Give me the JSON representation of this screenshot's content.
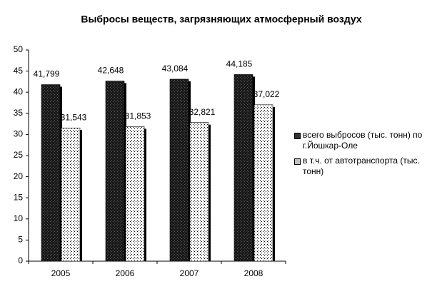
{
  "chart_data": {
    "type": "bar",
    "title": "Выбросы веществ, загрязняющих атмосферный воздух",
    "categories": [
      "2005",
      "2006",
      "2007",
      "2008"
    ],
    "series": [
      {
        "name": "всего выбросов (тыс. тонн) по г.Йошкар-Оле",
        "color": "#1a1a1a",
        "values": [
          41.799,
          42.648,
          43.084,
          44.185
        ],
        "value_labels": [
          "41,799",
          "42,648",
          "43,084",
          "44,185"
        ]
      },
      {
        "name": "в т.ч. от автотранспорта (тыс. тонн)",
        "color": "#ffffff",
        "values": [
          31.543,
          31.853,
          32.821,
          37.022
        ],
        "value_labels": [
          "31,543",
          "31,853",
          "32,821",
          "37,022"
        ]
      }
    ],
    "ylim": [
      0,
      50
    ],
    "yticks": [
      0,
      5,
      10,
      15,
      20,
      25,
      30,
      35,
      40,
      45,
      50
    ],
    "grid": false,
    "legend": "right"
  }
}
